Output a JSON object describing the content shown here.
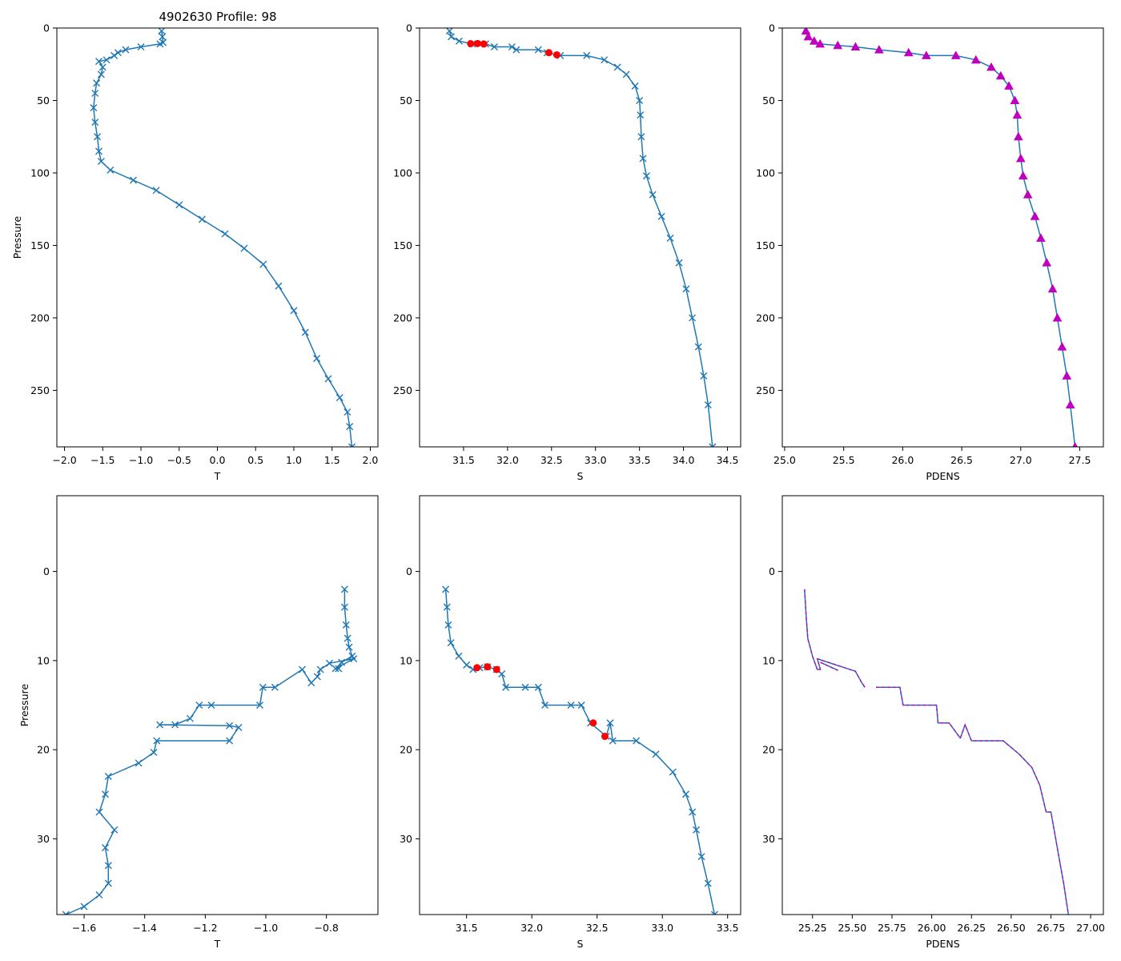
{
  "figure": {
    "title": "4902630 Profile: 98"
  },
  "colors": {
    "line": "#1f77b4",
    "flag": "#ff0000",
    "density": "#bf00bf"
  },
  "chart_data": [
    {
      "id": "temp-full",
      "type": "line",
      "xlabel": "T",
      "ylabel": "Pressure",
      "xlim": [
        -2.1,
        2.1
      ],
      "ylim": [
        289,
        0
      ],
      "xticks": [
        -2.0,
        -1.5,
        -1.0,
        -0.5,
        0.0,
        0.5,
        1.0,
        1.5,
        2.0
      ],
      "xtick_labels": [
        "−2.0",
        "−1.5",
        "−1.0",
        "−0.5",
        "0.0",
        "0.5",
        "1.0",
        "1.5",
        "2.0"
      ],
      "yticks": [
        0,
        50,
        100,
        150,
        200,
        250
      ],
      "ytick_labels": [
        "0",
        "50",
        "100",
        "150",
        "200",
        "250"
      ],
      "series": [
        {
          "name": "T",
          "marker": "x",
          "points": [
            [
              -0.73,
              2
            ],
            [
              -0.72,
              6
            ],
            [
              -0.71,
              10
            ],
            [
              -0.75,
              11
            ],
            [
              -1.0,
              13
            ],
            [
              -1.2,
              15
            ],
            [
              -1.3,
              17
            ],
            [
              -1.35,
              19
            ],
            [
              -1.45,
              22
            ],
            [
              -1.55,
              23
            ],
            [
              -1.5,
              27
            ],
            [
              -1.52,
              32
            ],
            [
              -1.58,
              38
            ],
            [
              -1.6,
              45
            ],
            [
              -1.62,
              55
            ],
            [
              -1.6,
              65
            ],
            [
              -1.57,
              75
            ],
            [
              -1.55,
              85
            ],
            [
              -1.52,
              92
            ],
            [
              -1.4,
              98
            ],
            [
              -1.1,
              105
            ],
            [
              -0.8,
              112
            ],
            [
              -0.5,
              122
            ],
            [
              -0.2,
              132
            ],
            [
              0.1,
              142
            ],
            [
              0.35,
              152
            ],
            [
              0.6,
              163
            ],
            [
              0.8,
              178
            ],
            [
              1.0,
              195
            ],
            [
              1.15,
              210
            ],
            [
              1.3,
              228
            ],
            [
              1.45,
              242
            ],
            [
              1.6,
              255
            ],
            [
              1.7,
              265
            ],
            [
              1.73,
              275
            ],
            [
              1.76,
              289
            ]
          ]
        }
      ]
    },
    {
      "id": "sal-full",
      "type": "line",
      "xlabel": "S",
      "ylabel": "",
      "xlim": [
        31.0,
        34.65
      ],
      "ylim": [
        289,
        0
      ],
      "xticks": [
        31.5,
        32.0,
        32.5,
        33.0,
        33.5,
        34.0,
        34.5
      ],
      "xtick_labels": [
        "31.5",
        "32.0",
        "32.5",
        "33.0",
        "33.5",
        "34.0",
        "34.5"
      ],
      "yticks": [
        0,
        50,
        100,
        150,
        200,
        250
      ],
      "ytick_labels": [
        "0",
        "50",
        "100",
        "150",
        "200",
        "250"
      ],
      "series": [
        {
          "name": "S",
          "marker": "x",
          "points": [
            [
              31.34,
              2
            ],
            [
              31.36,
              6
            ],
            [
              31.45,
              9
            ],
            [
              31.6,
              11
            ],
            [
              31.75,
              11
            ],
            [
              31.85,
              13
            ],
            [
              32.05,
              13
            ],
            [
              32.1,
              15
            ],
            [
              32.35,
              15
            ],
            [
              32.45,
              17
            ],
            [
              32.6,
              19
            ],
            [
              32.9,
              19
            ],
            [
              33.1,
              22
            ],
            [
              33.25,
              27
            ],
            [
              33.35,
              32
            ],
            [
              33.45,
              40
            ],
            [
              33.5,
              50
            ],
            [
              33.51,
              60
            ],
            [
              33.52,
              75
            ],
            [
              33.54,
              90
            ],
            [
              33.58,
              102
            ],
            [
              33.65,
              115
            ],
            [
              33.75,
              130
            ],
            [
              33.85,
              145
            ],
            [
              33.95,
              162
            ],
            [
              34.03,
              180
            ],
            [
              34.1,
              200
            ],
            [
              34.17,
              220
            ],
            [
              34.23,
              240
            ],
            [
              34.28,
              260
            ],
            [
              34.33,
              289
            ]
          ]
        }
      ],
      "flags": {
        "name": "flagged",
        "points": [
          [
            31.58,
            10.8
          ],
          [
            31.66,
            10.7
          ],
          [
            31.73,
            11.0
          ],
          [
            32.47,
            17.0
          ],
          [
            32.56,
            18.5
          ]
        ]
      }
    },
    {
      "id": "dens-full",
      "type": "line",
      "xlabel": "PDENS",
      "ylabel": "",
      "xlim": [
        24.98,
        27.7
      ],
      "ylim": [
        289,
        0
      ],
      "xticks": [
        25.0,
        25.5,
        26.0,
        26.5,
        27.0,
        27.5
      ],
      "xtick_labels": [
        "25.0",
        "25.5",
        "26.0",
        "26.5",
        "27.0",
        "27.5"
      ],
      "yticks": [
        0,
        50,
        100,
        150,
        200,
        250
      ],
      "ytick_labels": [
        "0",
        "50",
        "100",
        "150",
        "200",
        "250"
      ],
      "series": [
        {
          "name": "PDENS",
          "marker": "^",
          "points": [
            [
              25.18,
              2
            ],
            [
              25.2,
              6
            ],
            [
              25.25,
              9
            ],
            [
              25.3,
              11
            ],
            [
              25.45,
              12
            ],
            [
              25.6,
              13
            ],
            [
              25.8,
              15
            ],
            [
              26.05,
              17
            ],
            [
              26.2,
              19
            ],
            [
              26.45,
              19
            ],
            [
              26.62,
              22
            ],
            [
              26.75,
              27
            ],
            [
              26.83,
              33
            ],
            [
              26.9,
              40
            ],
            [
              26.95,
              50
            ],
            [
              26.97,
              60
            ],
            [
              26.98,
              75
            ],
            [
              27.0,
              90
            ],
            [
              27.02,
              102
            ],
            [
              27.06,
              115
            ],
            [
              27.12,
              130
            ],
            [
              27.17,
              145
            ],
            [
              27.22,
              162
            ],
            [
              27.27,
              180
            ],
            [
              27.31,
              200
            ],
            [
              27.35,
              220
            ],
            [
              27.39,
              240
            ],
            [
              27.42,
              260
            ],
            [
              27.46,
              289
            ]
          ]
        }
      ]
    },
    {
      "id": "temp-zoom",
      "type": "line",
      "xlabel": "T",
      "ylabel": "Pressure",
      "xlim": [
        -1.69,
        -0.63
      ],
      "ylim": [
        38.5,
        -8.5
      ],
      "xticks": [
        -1.6,
        -1.4,
        -1.2,
        -1.0,
        -0.8
      ],
      "xtick_labels": [
        "−1.6",
        "−1.4",
        "−1.2",
        "−1.0",
        "−0.8"
      ],
      "yticks": [
        0,
        10,
        20,
        30
      ],
      "ytick_labels": [
        "0",
        "10",
        "20",
        "30"
      ],
      "series": [
        {
          "name": "T",
          "marker": "x",
          "points": [
            [
              -0.74,
              2
            ],
            [
              -0.74,
              4
            ],
            [
              -0.735,
              6
            ],
            [
              -0.73,
              7.5
            ],
            [
              -0.725,
              8.5
            ],
            [
              -0.715,
              9.5
            ],
            [
              -0.75,
              10.2
            ],
            [
              -0.76,
              10.9
            ],
            [
              -0.77,
              10.9
            ],
            [
              -0.71,
              9.8
            ],
            [
              -0.79,
              10.3
            ],
            [
              -0.82,
              11.0
            ],
            [
              -0.83,
              11.8
            ],
            [
              -0.85,
              12.5
            ],
            [
              -0.88,
              11.0
            ],
            [
              -0.97,
              13.0
            ],
            [
              -1.01,
              13.0
            ],
            [
              -1.02,
              15.0
            ],
            [
              -1.18,
              15.0
            ],
            [
              -1.22,
              15.0
            ],
            [
              -1.25,
              16.5
            ],
            [
              -1.3,
              17.2
            ],
            [
              -1.35,
              17.2
            ],
            [
              -1.12,
              17.3
            ],
            [
              -1.09,
              17.5
            ],
            [
              -1.12,
              19.0
            ],
            [
              -1.36,
              19.0
            ],
            [
              -1.37,
              20.3
            ],
            [
              -1.42,
              21.5
            ],
            [
              -1.52,
              23.0
            ],
            [
              -1.53,
              25.0
            ],
            [
              -1.55,
              27.0
            ],
            [
              -1.5,
              29.0
            ],
            [
              -1.53,
              31.0
            ],
            [
              -1.52,
              33.0
            ],
            [
              -1.52,
              35.0
            ],
            [
              -1.55,
              36.3
            ],
            [
              -1.6,
              37.6
            ],
            [
              -1.66,
              38.5
            ]
          ]
        }
      ]
    },
    {
      "id": "sal-zoom",
      "type": "line",
      "xlabel": "S",
      "ylabel": "",
      "xlim": [
        31.14,
        33.6
      ],
      "ylim": [
        38.5,
        -8.5
      ],
      "xticks": [
        31.5,
        32.0,
        32.5,
        33.0,
        33.5
      ],
      "xtick_labels": [
        "31.5",
        "32.0",
        "32.5",
        "33.0",
        "33.5"
      ],
      "yticks": [
        0,
        10,
        20,
        30
      ],
      "ytick_labels": [
        "0",
        "10",
        "20",
        "30"
      ],
      "series": [
        {
          "name": "S",
          "marker": "x",
          "points": [
            [
              31.34,
              2
            ],
            [
              31.35,
              4
            ],
            [
              31.36,
              6
            ],
            [
              31.38,
              8
            ],
            [
              31.44,
              9.5
            ],
            [
              31.5,
              10.5
            ],
            [
              31.55,
              11.0
            ],
            [
              31.6,
              10.8
            ],
            [
              31.66,
              10.7
            ],
            [
              31.73,
              11.0
            ],
            [
              31.77,
              11.5
            ],
            [
              31.8,
              13.0
            ],
            [
              31.95,
              13.0
            ],
            [
              32.05,
              13.0
            ],
            [
              32.1,
              15.0
            ],
            [
              32.3,
              15.0
            ],
            [
              32.38,
              15.0
            ],
            [
              32.45,
              17.0
            ],
            [
              32.57,
              18.5
            ],
            [
              32.6,
              17.0
            ],
            [
              32.62,
              19.0
            ],
            [
              32.8,
              19.0
            ],
            [
              32.95,
              20.5
            ],
            [
              33.08,
              22.5
            ],
            [
              33.18,
              25.0
            ],
            [
              33.23,
              27.0
            ],
            [
              33.26,
              29.0
            ],
            [
              33.3,
              32.0
            ],
            [
              33.35,
              35.0
            ],
            [
              33.4,
              38.5
            ]
          ]
        }
      ],
      "flags": {
        "name": "flagged",
        "points": [
          [
            31.58,
            10.8
          ],
          [
            31.66,
            10.7
          ],
          [
            31.73,
            11.0
          ],
          [
            32.47,
            17.0
          ],
          [
            32.56,
            18.5
          ]
        ]
      }
    },
    {
      "id": "dens-zoom",
      "type": "line",
      "xlabel": "PDENS",
      "ylabel": "",
      "xlim": [
        25.06,
        27.08
      ],
      "ylim": [
        38.5,
        -8.5
      ],
      "xticks": [
        25.25,
        25.5,
        25.75,
        26.0,
        26.25,
        26.5,
        26.75,
        27.0
      ],
      "xtick_labels": [
        "25.25",
        "25.50",
        "25.75",
        "26.00",
        "26.25",
        "26.50",
        "26.75",
        "27.00"
      ],
      "yticks": [
        0,
        10,
        20,
        30
      ],
      "ytick_labels": [
        "0",
        "10",
        "20",
        "30"
      ],
      "series": [
        {
          "name": "PDENS",
          "points": [
            [
              25.2,
              2
            ],
            [
              25.21,
              5
            ],
            [
              25.22,
              7.5
            ],
            [
              25.25,
              9.5
            ],
            [
              25.28,
              11
            ],
            [
              25.3,
              11
            ],
            [
              25.28,
              9.8
            ],
            [
              25.52,
              11.2
            ],
            [
              25.56,
              12.5
            ],
            [
              25.58,
              13
            ]
          ]
        },
        {
          "name": "PDENS-b",
          "points": [
            [
              25.3,
              10.2
            ],
            [
              25.41,
              11.1
            ]
          ]
        },
        {
          "name": "PDENS-c",
          "points": [
            [
              25.65,
              13
            ],
            [
              25.8,
              13
            ],
            [
              25.82,
              15
            ],
            [
              26.03,
              15
            ],
            [
              26.04,
              17
            ],
            [
              26.11,
              17
            ],
            [
              26.18,
              18.7
            ],
            [
              26.21,
              17.2
            ],
            [
              26.25,
              19
            ],
            [
              26.45,
              19
            ],
            [
              26.55,
              20.5
            ],
            [
              26.63,
              22
            ],
            [
              26.68,
              24
            ],
            [
              26.72,
              27
            ],
            [
              26.75,
              27
            ],
            [
              26.77,
              29
            ],
            [
              26.8,
              32
            ],
            [
              26.83,
              35
            ],
            [
              26.86,
              38.5
            ]
          ]
        }
      ]
    }
  ]
}
